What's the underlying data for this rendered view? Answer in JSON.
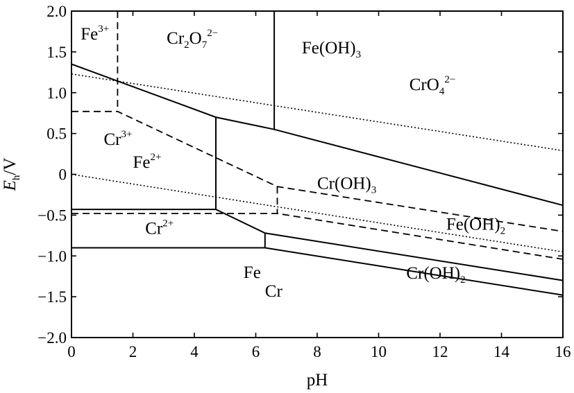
{
  "chart_data": {
    "type": "line",
    "title": "",
    "xlabel": "pH",
    "ylabel": {
      "main": "E",
      "sub": "h",
      "rest": "/V"
    },
    "xlim": [
      0,
      16
    ],
    "ylim": [
      -2.0,
      2.0
    ],
    "x_ticks": [
      0,
      2,
      4,
      6,
      8,
      10,
      12,
      14,
      16
    ],
    "x_tick_labels": [
      "0",
      "2",
      "4",
      "6",
      "8",
      "10",
      "12",
      "14",
      "16"
    ],
    "y_ticks": [
      2.0,
      1.5,
      1.0,
      0.5,
      0,
      -0.5,
      -1.0,
      -1.5,
      -2.0
    ],
    "y_tick_labels": [
      "2.0",
      "1.5",
      "1.0",
      "0.5",
      "0",
      "−0.5",
      "−1.0",
      "−1.5",
      "−2.0"
    ],
    "grid": false,
    "series": [
      {
        "style": "solid",
        "points": [
          [
            0,
            1.35
          ],
          [
            4.7,
            0.7
          ],
          [
            6.6,
            0.55
          ],
          [
            16,
            -0.38
          ]
        ]
      },
      {
        "style": "solid",
        "points": [
          [
            6.6,
            2.0
          ],
          [
            6.6,
            0.55
          ]
        ]
      },
      {
        "style": "solid",
        "points": [
          [
            4.7,
            0.7
          ],
          [
            4.7,
            -0.43
          ]
        ]
      },
      {
        "style": "solid",
        "points": [
          [
            0,
            -0.43
          ],
          [
            4.7,
            -0.43
          ],
          [
            6.3,
            -0.72
          ],
          [
            16,
            -1.3
          ]
        ]
      },
      {
        "style": "solid",
        "points": [
          [
            0,
            -0.9
          ],
          [
            6.3,
            -0.9
          ],
          [
            16,
            -1.48
          ]
        ]
      },
      {
        "style": "solid",
        "points": [
          [
            6.3,
            -0.72
          ],
          [
            6.3,
            -0.9
          ]
        ]
      },
      {
        "style": "dashed",
        "points": [
          [
            1.5,
            2.0
          ],
          [
            1.5,
            0.77
          ]
        ]
      },
      {
        "style": "dashed",
        "points": [
          [
            0,
            0.77
          ],
          [
            1.5,
            0.77
          ],
          [
            6.7,
            -0.15
          ],
          [
            16,
            -0.7
          ]
        ]
      },
      {
        "style": "dashed",
        "points": [
          [
            0,
            -0.48
          ],
          [
            6.7,
            -0.48
          ],
          [
            16,
            -1.04
          ]
        ]
      },
      {
        "style": "dashed",
        "points": [
          [
            6.7,
            -0.15
          ],
          [
            6.7,
            -0.48
          ]
        ]
      },
      {
        "style": "dotted",
        "points": [
          [
            0,
            1.23
          ],
          [
            16,
            0.29
          ]
        ]
      },
      {
        "style": "dotted",
        "points": [
          [
            0,
            0.0
          ],
          [
            16,
            -0.95
          ]
        ]
      }
    ],
    "labels": [
      {
        "x": 0.3,
        "y": 1.65,
        "text": "Fe",
        "sup": "3+",
        "sub": ""
      },
      {
        "x": 3.1,
        "y": 1.6,
        "parts": [
          {
            "t": "Cr",
            "k": "n"
          },
          {
            "t": "2",
            "k": "b"
          },
          {
            "t": "O",
            "k": "n"
          },
          {
            "t": "7",
            "k": "b"
          },
          {
            "t": "2−",
            "k": "p"
          }
        ]
      },
      {
        "x": 7.5,
        "y": 1.48,
        "parts": [
          {
            "t": "Fe(OH)",
            "k": "n"
          },
          {
            "t": "3",
            "k": "b"
          }
        ]
      },
      {
        "x": 11.0,
        "y": 1.03,
        "parts": [
          {
            "t": "CrO",
            "k": "n"
          },
          {
            "t": "4",
            "k": "b"
          },
          {
            "t": "2−",
            "k": "p"
          }
        ]
      },
      {
        "x": 1.05,
        "y": 0.36,
        "parts": [
          {
            "t": "Cr",
            "k": "n"
          },
          {
            "t": "3+",
            "k": "p"
          }
        ]
      },
      {
        "x": 2.0,
        "y": 0.08,
        "parts": [
          {
            "t": "Fe",
            "k": "n"
          },
          {
            "t": "2+",
            "k": "p"
          }
        ]
      },
      {
        "x": 8.0,
        "y": -0.18,
        "parts": [
          {
            "t": "Cr(OH)",
            "k": "n"
          },
          {
            "t": "3",
            "k": "b"
          }
        ]
      },
      {
        "x": 12.2,
        "y": -0.68,
        "parts": [
          {
            "t": "Fe(OH)",
            "k": "n"
          },
          {
            "t": "2",
            "k": "b"
          }
        ]
      },
      {
        "x": 2.4,
        "y": -0.73,
        "parts": [
          {
            "t": "Cr",
            "k": "n"
          },
          {
            "t": "2+",
            "k": "p"
          }
        ]
      },
      {
        "x": 5.6,
        "y": -1.27,
        "parts": [
          {
            "t": "Fe",
            "k": "n"
          }
        ]
      },
      {
        "x": 6.3,
        "y": -1.5,
        "parts": [
          {
            "t": "Cr",
            "k": "n"
          }
        ]
      },
      {
        "x": 10.9,
        "y": -1.28,
        "parts": [
          {
            "t": "Cr(OH)",
            "k": "n"
          },
          {
            "t": "2",
            "k": "b"
          }
        ]
      }
    ]
  }
}
